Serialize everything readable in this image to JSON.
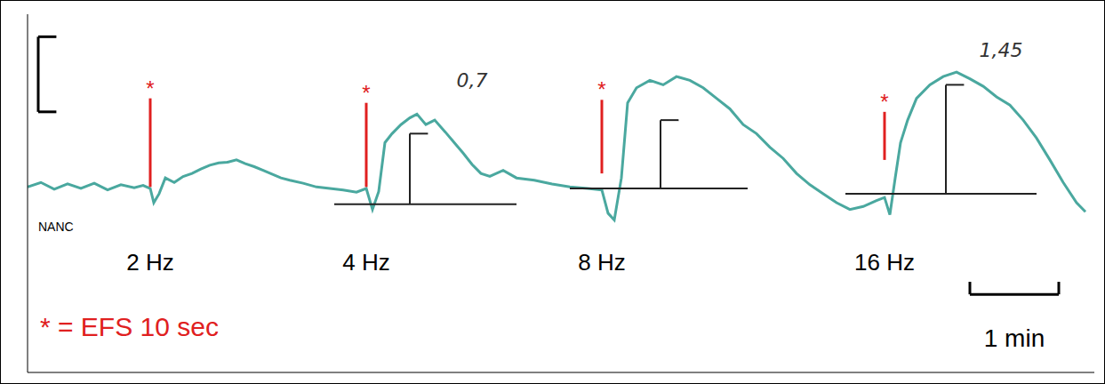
{
  "chart_data": {
    "type": "line",
    "color": "#4aa89f",
    "tick_labels": false,
    "grid": false,
    "xlim": [
      0,
      12
    ],
    "ylim": [
      -2.45,
      2.32
    ],
    "label": "NANC",
    "key": "* = EFS 10 sec",
    "x": [
      0.0,
      0.15,
      0.3,
      0.45,
      0.6,
      0.75,
      0.9,
      1.05,
      1.2,
      1.3,
      1.38,
      1.42,
      1.48,
      1.55,
      1.65,
      1.75,
      1.85,
      1.95,
      2.05,
      2.15,
      2.25,
      2.35,
      2.45,
      2.55,
      2.65,
      2.75,
      2.85,
      2.95,
      3.1,
      3.25,
      3.4,
      3.55,
      3.7,
      3.81,
      3.88,
      3.95,
      4.02,
      4.1,
      4.2,
      4.3,
      4.38,
      4.48,
      4.58,
      4.7,
      4.8,
      4.9,
      5.0,
      5.1,
      5.2,
      5.35,
      5.5,
      5.7,
      5.9,
      6.1,
      6.3,
      6.46,
      6.53,
      6.6,
      6.68,
      6.75,
      6.85,
      7.0,
      7.15,
      7.3,
      7.45,
      7.6,
      7.75,
      7.9,
      8.05,
      8.2,
      8.35,
      8.5,
      8.65,
      8.8,
      8.95,
      9.1,
      9.25,
      9.4,
      9.55,
      9.64,
      9.7,
      9.76,
      9.82,
      9.9,
      10.0,
      10.15,
      10.3,
      10.45,
      10.6,
      10.75,
      10.9,
      11.05,
      11.2,
      11.35,
      11.5,
      11.65,
      11.8,
      11.9
    ],
    "values": [
      0.02,
      0.08,
      -0.01,
      0.06,
      0.0,
      0.07,
      -0.02,
      0.05,
      0.01,
      0.04,
      0.0,
      -0.19,
      -0.07,
      0.14,
      0.08,
      0.16,
      0.2,
      0.26,
      0.31,
      0.34,
      0.35,
      0.38,
      0.33,
      0.29,
      0.24,
      0.19,
      0.14,
      0.11,
      0.07,
      0.02,
      0.0,
      -0.02,
      -0.05,
      0.0,
      -0.28,
      -0.04,
      0.61,
      0.73,
      0.85,
      0.94,
      0.99,
      0.85,
      0.91,
      0.75,
      0.61,
      0.47,
      0.32,
      0.2,
      0.16,
      0.24,
      0.14,
      0.11,
      0.06,
      0.02,
      0.0,
      -0.02,
      -0.33,
      -0.42,
      0.14,
      1.14,
      1.34,
      1.44,
      1.38,
      1.49,
      1.44,
      1.34,
      1.2,
      1.06,
      0.85,
      0.73,
      0.55,
      0.4,
      0.2,
      0.05,
      -0.07,
      -0.19,
      -0.28,
      -0.24,
      -0.16,
      -0.12,
      -0.35,
      0.14,
      0.61,
      0.91,
      1.2,
      1.38,
      1.49,
      1.55,
      1.46,
      1.36,
      1.22,
      1.11,
      0.91,
      0.67,
      0.38,
      0.08,
      -0.19,
      -0.31
    ],
    "stimuli": {
      "symbol": "*",
      "color": "#e02020",
      "items": [
        {
          "x": 1.38,
          "label": "2 Hz",
          "marker": [
            0.02,
            1.2
          ]
        },
        {
          "x": 3.81,
          "label": "4 Hz",
          "marker": [
            0.02,
            1.14
          ]
        },
        {
          "x": 6.46,
          "label": "8 Hz",
          "marker": [
            0.2,
            1.18
          ]
        },
        {
          "x": 9.64,
          "label": "16 Hz",
          "marker": [
            0.38,
            1.02
          ]
        }
      ]
    },
    "amplitude_marks": [
      {
        "baseline": -0.21,
        "from": 3.45,
        "to": 5.5,
        "x": 4.3,
        "peak": 0.73
      },
      {
        "baseline": 0.0,
        "from": 6.1,
        "to": 8.1,
        "x": 7.12,
        "peak": 0.91
      },
      {
        "baseline": -0.07,
        "from": 9.2,
        "to": 11.35,
        "x": 10.33,
        "peak": 1.38
      }
    ],
    "y_scale_bar": {
      "x": 0.12,
      "from": 1.02,
      "to": 2.02
    },
    "x_scale_bar": {
      "from": 10.6,
      "to": 11.6,
      "y": -1.41,
      "label": "1 min"
    },
    "handwritten_notes": [
      {
        "text": "0,7",
        "x": 5.0,
        "y": 1.44
      },
      {
        "text": "1,45",
        "x": 10.95,
        "y": 1.85
      }
    ]
  }
}
